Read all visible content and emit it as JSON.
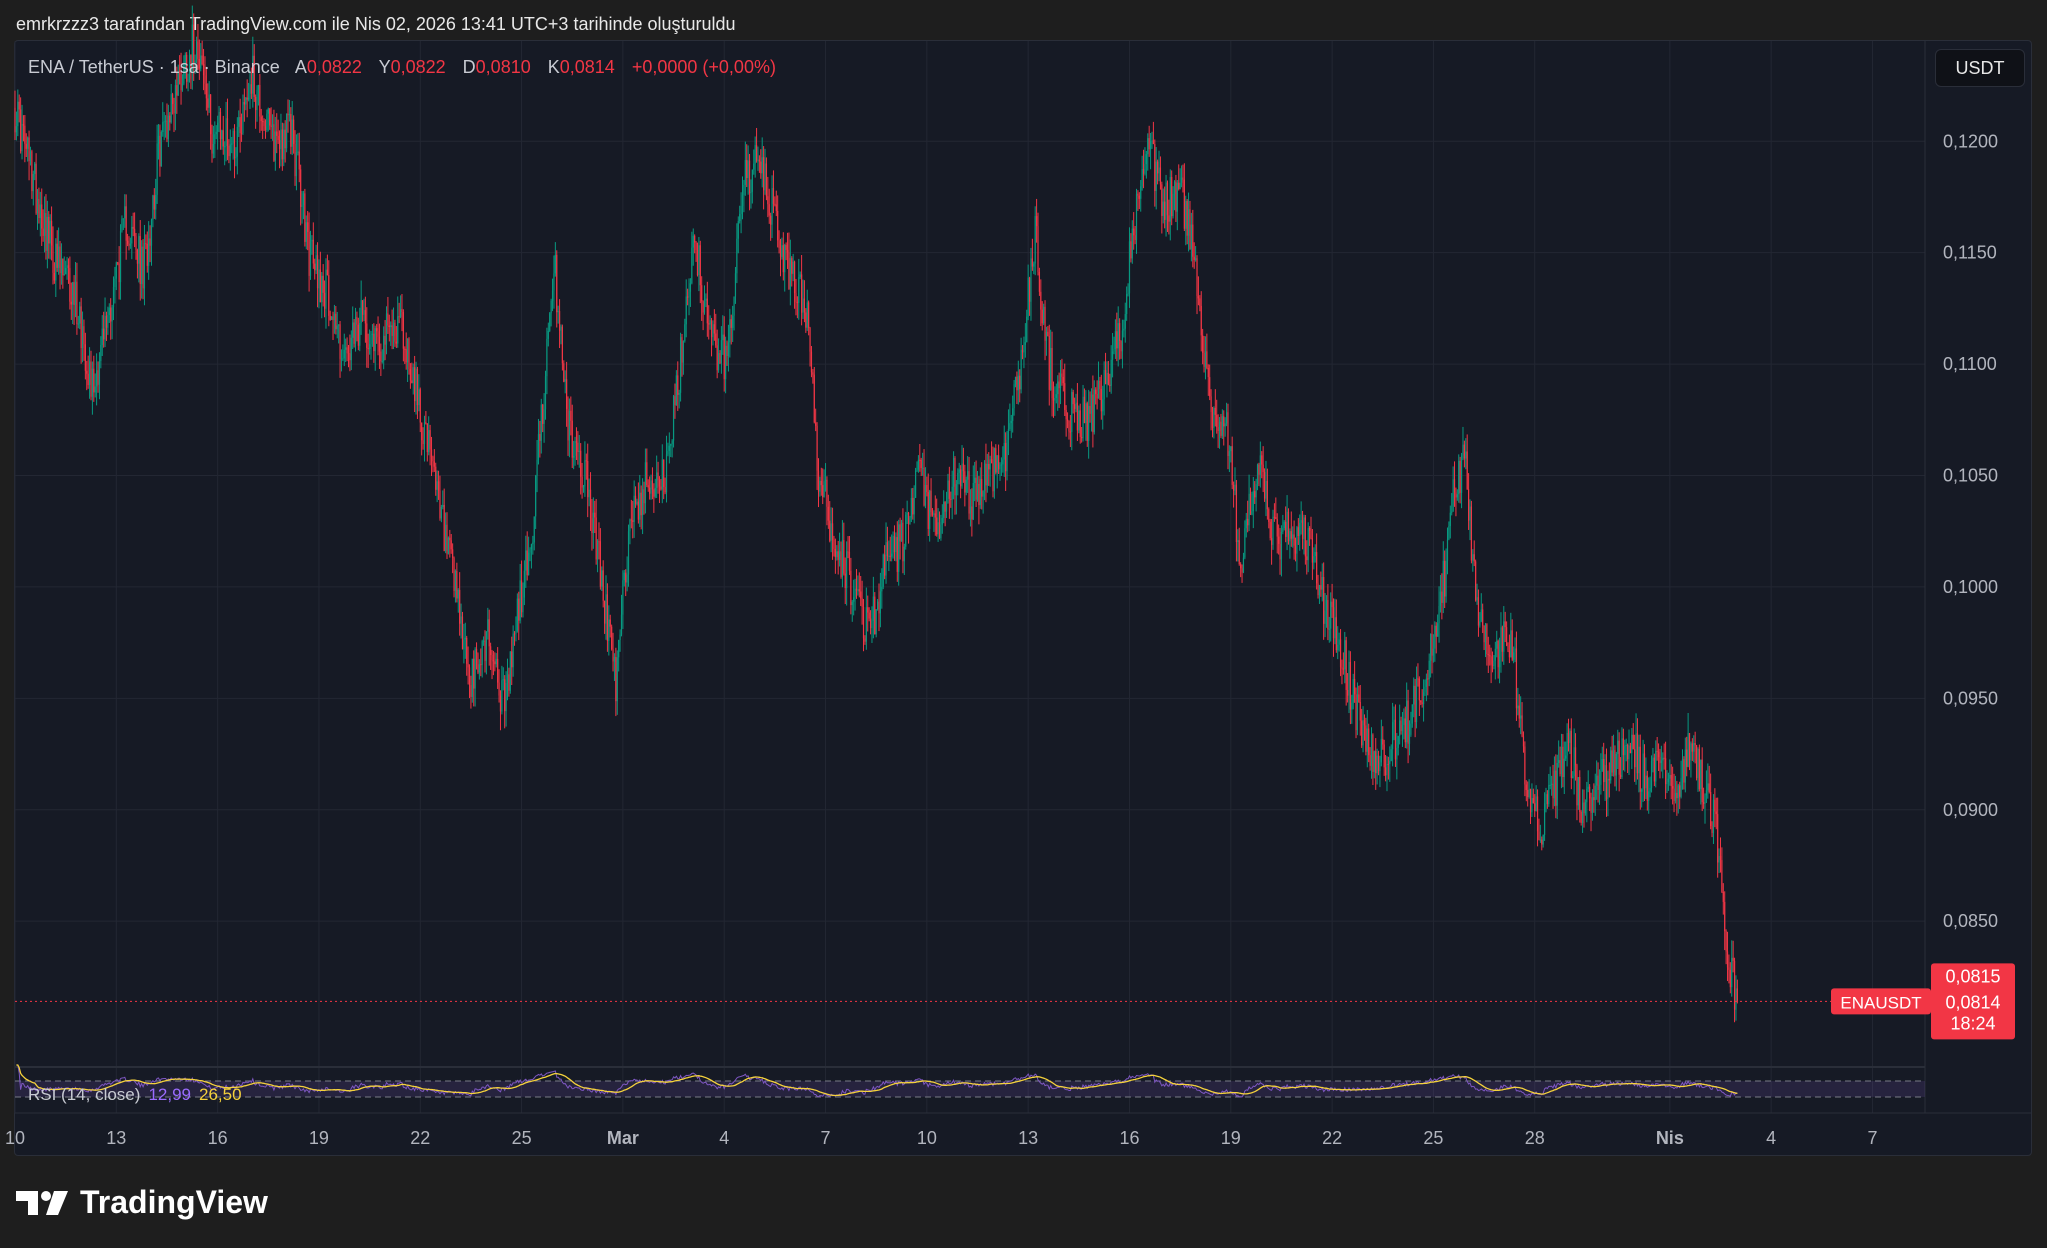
{
  "caption": "emrkrzzz3 tarafından TradingView.com ile Nis 02, 2026 13:41 UTC+3 tarihinde oluşturuldu",
  "logo_text": "TradingView",
  "logo_icon": "tradingview-logo-icon",
  "legend": {
    "symbol": "ENA / TetherUS · 1sa · Binance",
    "open_label": "A",
    "open": "0,0822",
    "high_label": "Y",
    "high": "0,0822",
    "low_label": "D",
    "low": "0,0810",
    "close_label": "K",
    "close": "0,0814",
    "change": "+0,0000 (+0,00%)"
  },
  "currency_button": "USDT",
  "price_tags": {
    "symbol": "ENAUSDT",
    "top": "0,0815",
    "price": "0,0814",
    "countdown": "18:24"
  },
  "rsi_legend": {
    "name": "RSI (14, close)",
    "value": "12,99",
    "ma": "26,50"
  },
  "colors": {
    "background": "#161a25",
    "up": "#089981",
    "down": "#f23645",
    "grid": "#232733",
    "rsi": "#7e57c2",
    "rsi_ma": "#f5d23c"
  },
  "chart_data": {
    "type": "candlestick",
    "symbol": "ENA / TetherUS",
    "interval": "1sa",
    "exchange": "Binance",
    "y_axis_side": "right",
    "ylim": [
      0.0785,
      0.1245
    ],
    "y_ticks": [
      {
        "value": 0.12,
        "label": "0,1200"
      },
      {
        "value": 0.115,
        "label": "0,1150"
      },
      {
        "value": 0.11,
        "label": "0,1100"
      },
      {
        "value": 0.105,
        "label": "0,1050"
      },
      {
        "value": 0.1,
        "label": "0,1000"
      },
      {
        "value": 0.095,
        "label": "0,0950"
      },
      {
        "value": 0.09,
        "label": "0,0900"
      },
      {
        "value": 0.085,
        "label": "0,0850"
      }
    ],
    "x_range_days": [
      10,
      67
    ],
    "x_ticks": [
      {
        "day": 10,
        "label": "10"
      },
      {
        "day": 13,
        "label": "13"
      },
      {
        "day": 16,
        "label": "16"
      },
      {
        "day": 19,
        "label": "19"
      },
      {
        "day": 22,
        "label": "22"
      },
      {
        "day": 25,
        "label": "25"
      },
      {
        "day": 28,
        "label": "Mar"
      },
      {
        "day": 31,
        "label": "4"
      },
      {
        "day": 34,
        "label": "7"
      },
      {
        "day": 37,
        "label": "10"
      },
      {
        "day": 40,
        "label": "13"
      },
      {
        "day": 43,
        "label": "16"
      },
      {
        "day": 46,
        "label": "19"
      },
      {
        "day": 49,
        "label": "22"
      },
      {
        "day": 52,
        "label": "25"
      },
      {
        "day": 55,
        "label": "28"
      },
      {
        "day": 59,
        "label": "Nis"
      },
      {
        "day": 62,
        "label": "4"
      },
      {
        "day": 65,
        "label": "7"
      }
    ],
    "bold_x_ticks": [
      "Mar",
      "Nis"
    ],
    "price_path": [
      [
        10.0,
        0.1215
      ],
      [
        10.6,
        0.118
      ],
      [
        11.2,
        0.1145
      ],
      [
        11.8,
        0.113
      ],
      [
        12.3,
        0.109
      ],
      [
        12.8,
        0.1125
      ],
      [
        13.3,
        0.1165
      ],
      [
        13.8,
        0.114
      ],
      [
        14.3,
        0.12
      ],
      [
        14.9,
        0.123
      ],
      [
        15.4,
        0.1248
      ],
      [
        15.8,
        0.1205
      ],
      [
        16.5,
        0.12
      ],
      [
        17.0,
        0.123
      ],
      [
        17.6,
        0.12
      ],
      [
        18.2,
        0.1205
      ],
      [
        18.7,
        0.115
      ],
      [
        19.3,
        0.113
      ],
      [
        19.8,
        0.11
      ],
      [
        20.3,
        0.112
      ],
      [
        20.9,
        0.111
      ],
      [
        21.4,
        0.112
      ],
      [
        22.0,
        0.108
      ],
      [
        22.5,
        0.104
      ],
      [
        23.0,
        0.1
      ],
      [
        23.5,
        0.0955
      ],
      [
        24.0,
        0.098
      ],
      [
        24.5,
        0.0945
      ],
      [
        24.9,
        0.099
      ],
      [
        25.3,
        0.102
      ],
      [
        25.6,
        0.108
      ],
      [
        26.0,
        0.114
      ],
      [
        26.4,
        0.107
      ],
      [
        26.9,
        0.105
      ],
      [
        27.4,
        0.1
      ],
      [
        27.8,
        0.0955
      ],
      [
        28.2,
        0.103
      ],
      [
        28.8,
        0.105
      ],
      [
        29.3,
        0.105
      ],
      [
        29.7,
        0.11
      ],
      [
        30.1,
        0.116
      ],
      [
        30.6,
        0.111
      ],
      [
        31.1,
        0.11
      ],
      [
        31.5,
        0.118
      ],
      [
        32.0,
        0.119
      ],
      [
        32.5,
        0.1165
      ],
      [
        32.9,
        0.114
      ],
      [
        33.4,
        0.113
      ],
      [
        33.8,
        0.105
      ],
      [
        34.3,
        0.102
      ],
      [
        34.8,
        0.1
      ],
      [
        35.3,
        0.098
      ],
      [
        35.8,
        0.101
      ],
      [
        36.3,
        0.102
      ],
      [
        36.8,
        0.105
      ],
      [
        37.3,
        0.102
      ],
      [
        37.8,
        0.105
      ],
      [
        38.3,
        0.104
      ],
      [
        38.8,
        0.105
      ],
      [
        39.3,
        0.106
      ],
      [
        39.8,
        0.11
      ],
      [
        40.2,
        0.116
      ],
      [
        40.6,
        0.11
      ],
      [
        41.1,
        0.108
      ],
      [
        41.7,
        0.1075
      ],
      [
        42.2,
        0.1085
      ],
      [
        42.7,
        0.111
      ],
      [
        43.1,
        0.116
      ],
      [
        43.6,
        0.1195
      ],
      [
        44.0,
        0.117
      ],
      [
        44.5,
        0.118
      ],
      [
        45.0,
        0.114
      ],
      [
        45.4,
        0.108
      ],
      [
        45.9,
        0.107
      ],
      [
        46.3,
        0.101
      ],
      [
        46.8,
        0.1055
      ],
      [
        47.3,
        0.102
      ],
      [
        47.8,
        0.1025
      ],
      [
        48.3,
        0.102
      ],
      [
        48.8,
        0.099
      ],
      [
        49.3,
        0.097
      ],
      [
        49.8,
        0.094
      ],
      [
        50.3,
        0.092
      ],
      [
        50.8,
        0.093
      ],
      [
        51.3,
        0.094
      ],
      [
        51.7,
        0.096
      ],
      [
        52.2,
        0.099
      ],
      [
        52.6,
        0.104
      ],
      [
        52.9,
        0.106
      ],
      [
        53.3,
        0.099
      ],
      [
        53.8,
        0.097
      ],
      [
        54.3,
        0.098
      ],
      [
        54.7,
        0.092
      ],
      [
        55.2,
        0.089
      ],
      [
        55.6,
        0.091
      ],
      [
        56.0,
        0.093
      ],
      [
        56.4,
        0.09
      ],
      [
        56.9,
        0.091
      ],
      [
        57.4,
        0.092
      ],
      [
        57.9,
        0.093
      ],
      [
        58.3,
        0.091
      ],
      [
        58.8,
        0.092
      ],
      [
        59.2,
        0.091
      ],
      [
        59.7,
        0.093
      ],
      [
        60.1,
        0.0905
      ],
      [
        60.4,
        0.089
      ],
      [
        60.6,
        0.085
      ],
      [
        60.8,
        0.083
      ],
      [
        61.0,
        0.0814
      ]
    ],
    "last_price": 0.0814,
    "rsi": {
      "period": 14,
      "source": "close",
      "value": 12.99,
      "ma_value": 26.5,
      "band_upper": 70,
      "band_lower": 30
    }
  }
}
